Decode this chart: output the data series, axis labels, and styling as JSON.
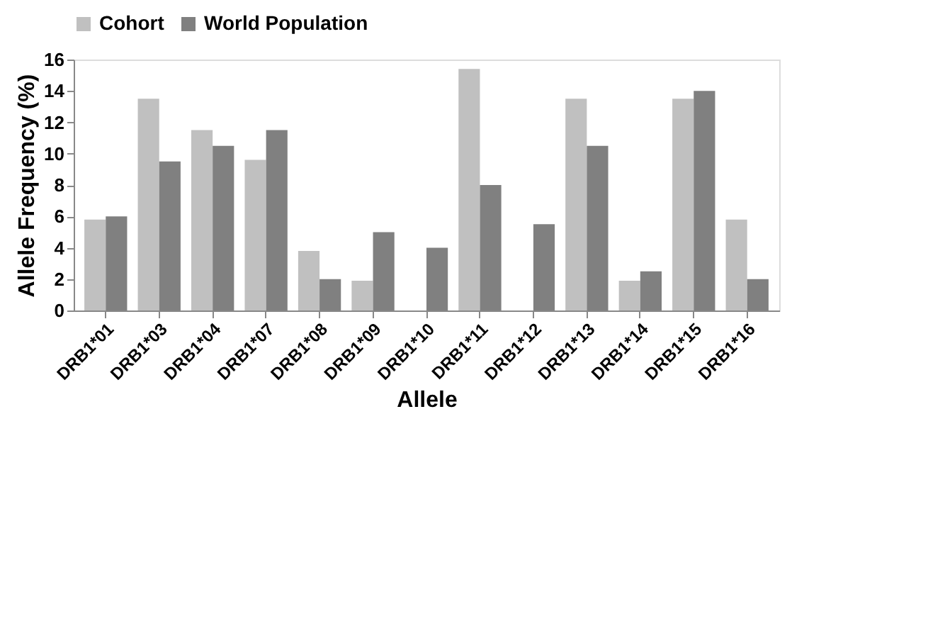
{
  "chart_data": {
    "type": "bar",
    "xlabel": "Allele",
    "ylabel": "Allele Frequency (%)",
    "categories": [
      "DRB1*01",
      "DRB1*03",
      "DRB1*04",
      "DRB1*07",
      "DRB1*08",
      "DRB1*09",
      "DRB1*10",
      "DRB1*11",
      "DRB1*12",
      "DRB1*13",
      "DRB1*14",
      "DRB1*15",
      "DRB1*16"
    ],
    "series": [
      {
        "name": "Cohort",
        "color": "#c0c0c0",
        "values": [
          5.8,
          13.5,
          11.5,
          9.6,
          3.8,
          1.9,
          0,
          15.4,
          0,
          13.5,
          1.9,
          13.5,
          5.8
        ]
      },
      {
        "name": "World Population",
        "color": "#808080",
        "values": [
          6,
          9.5,
          10.5,
          11.5,
          2,
          5,
          4,
          8,
          5.5,
          10.5,
          2.5,
          14,
          2
        ]
      }
    ],
    "ylim": [
      0,
      16
    ],
    "yticks": [
      0,
      2,
      4,
      6,
      8,
      10,
      12,
      14,
      16
    ],
    "grid": false,
    "legend": "top"
  }
}
